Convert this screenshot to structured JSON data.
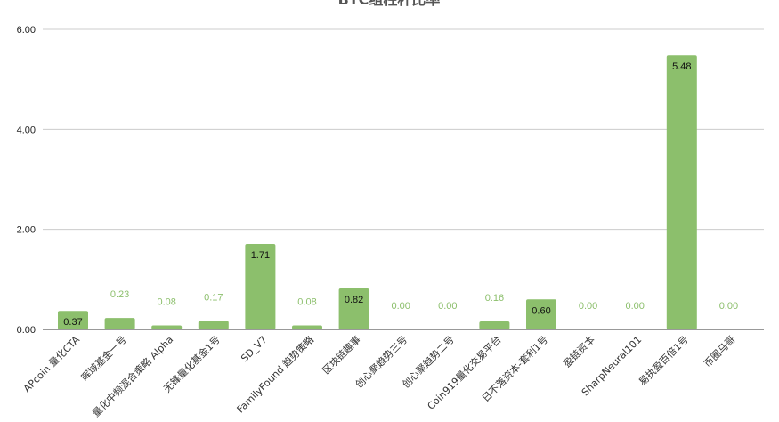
{
  "chart_data": {
    "type": "bar",
    "title": "BTC组柱杆比率",
    "categories": [
      "APcoin 量化CTA",
      "晖域基金一号",
      "量化中频混合策略 Alpha",
      "无锋量化基金1号",
      "SD_V7",
      "FamilyFound 趋势策略",
      "区块链趣事",
      "创心聚趋势三号",
      "创心聚趋势二号",
      "Coin919量化交易平台",
      "日不落资本-套利1号",
      "盈链资本",
      "SharpNeural101",
      "易执盈百倍1号",
      "币圈马哥"
    ],
    "values": [
      0.37,
      0.23,
      0.08,
      0.17,
      1.71,
      0.08,
      0.82,
      0.0,
      0.0,
      0.16,
      0.6,
      0.0,
      0.0,
      5.48,
      0.0
    ],
    "data_labels": [
      "0.37",
      "0.23",
      "0.08",
      "0.17",
      "1.71",
      "0.08",
      "0.82",
      "0.00",
      "0.00",
      "0.16",
      "0.60",
      "0.00",
      "0.00",
      "5.48",
      "0.00"
    ],
    "y_ticks": [
      "0.00",
      "2.00",
      "4.00",
      "6.00"
    ],
    "ylim": [
      0,
      6
    ],
    "grid": true,
    "bar_color": "#8cbf6c",
    "label_color": "#8cbf6c",
    "xlabel": "",
    "ylabel": ""
  }
}
